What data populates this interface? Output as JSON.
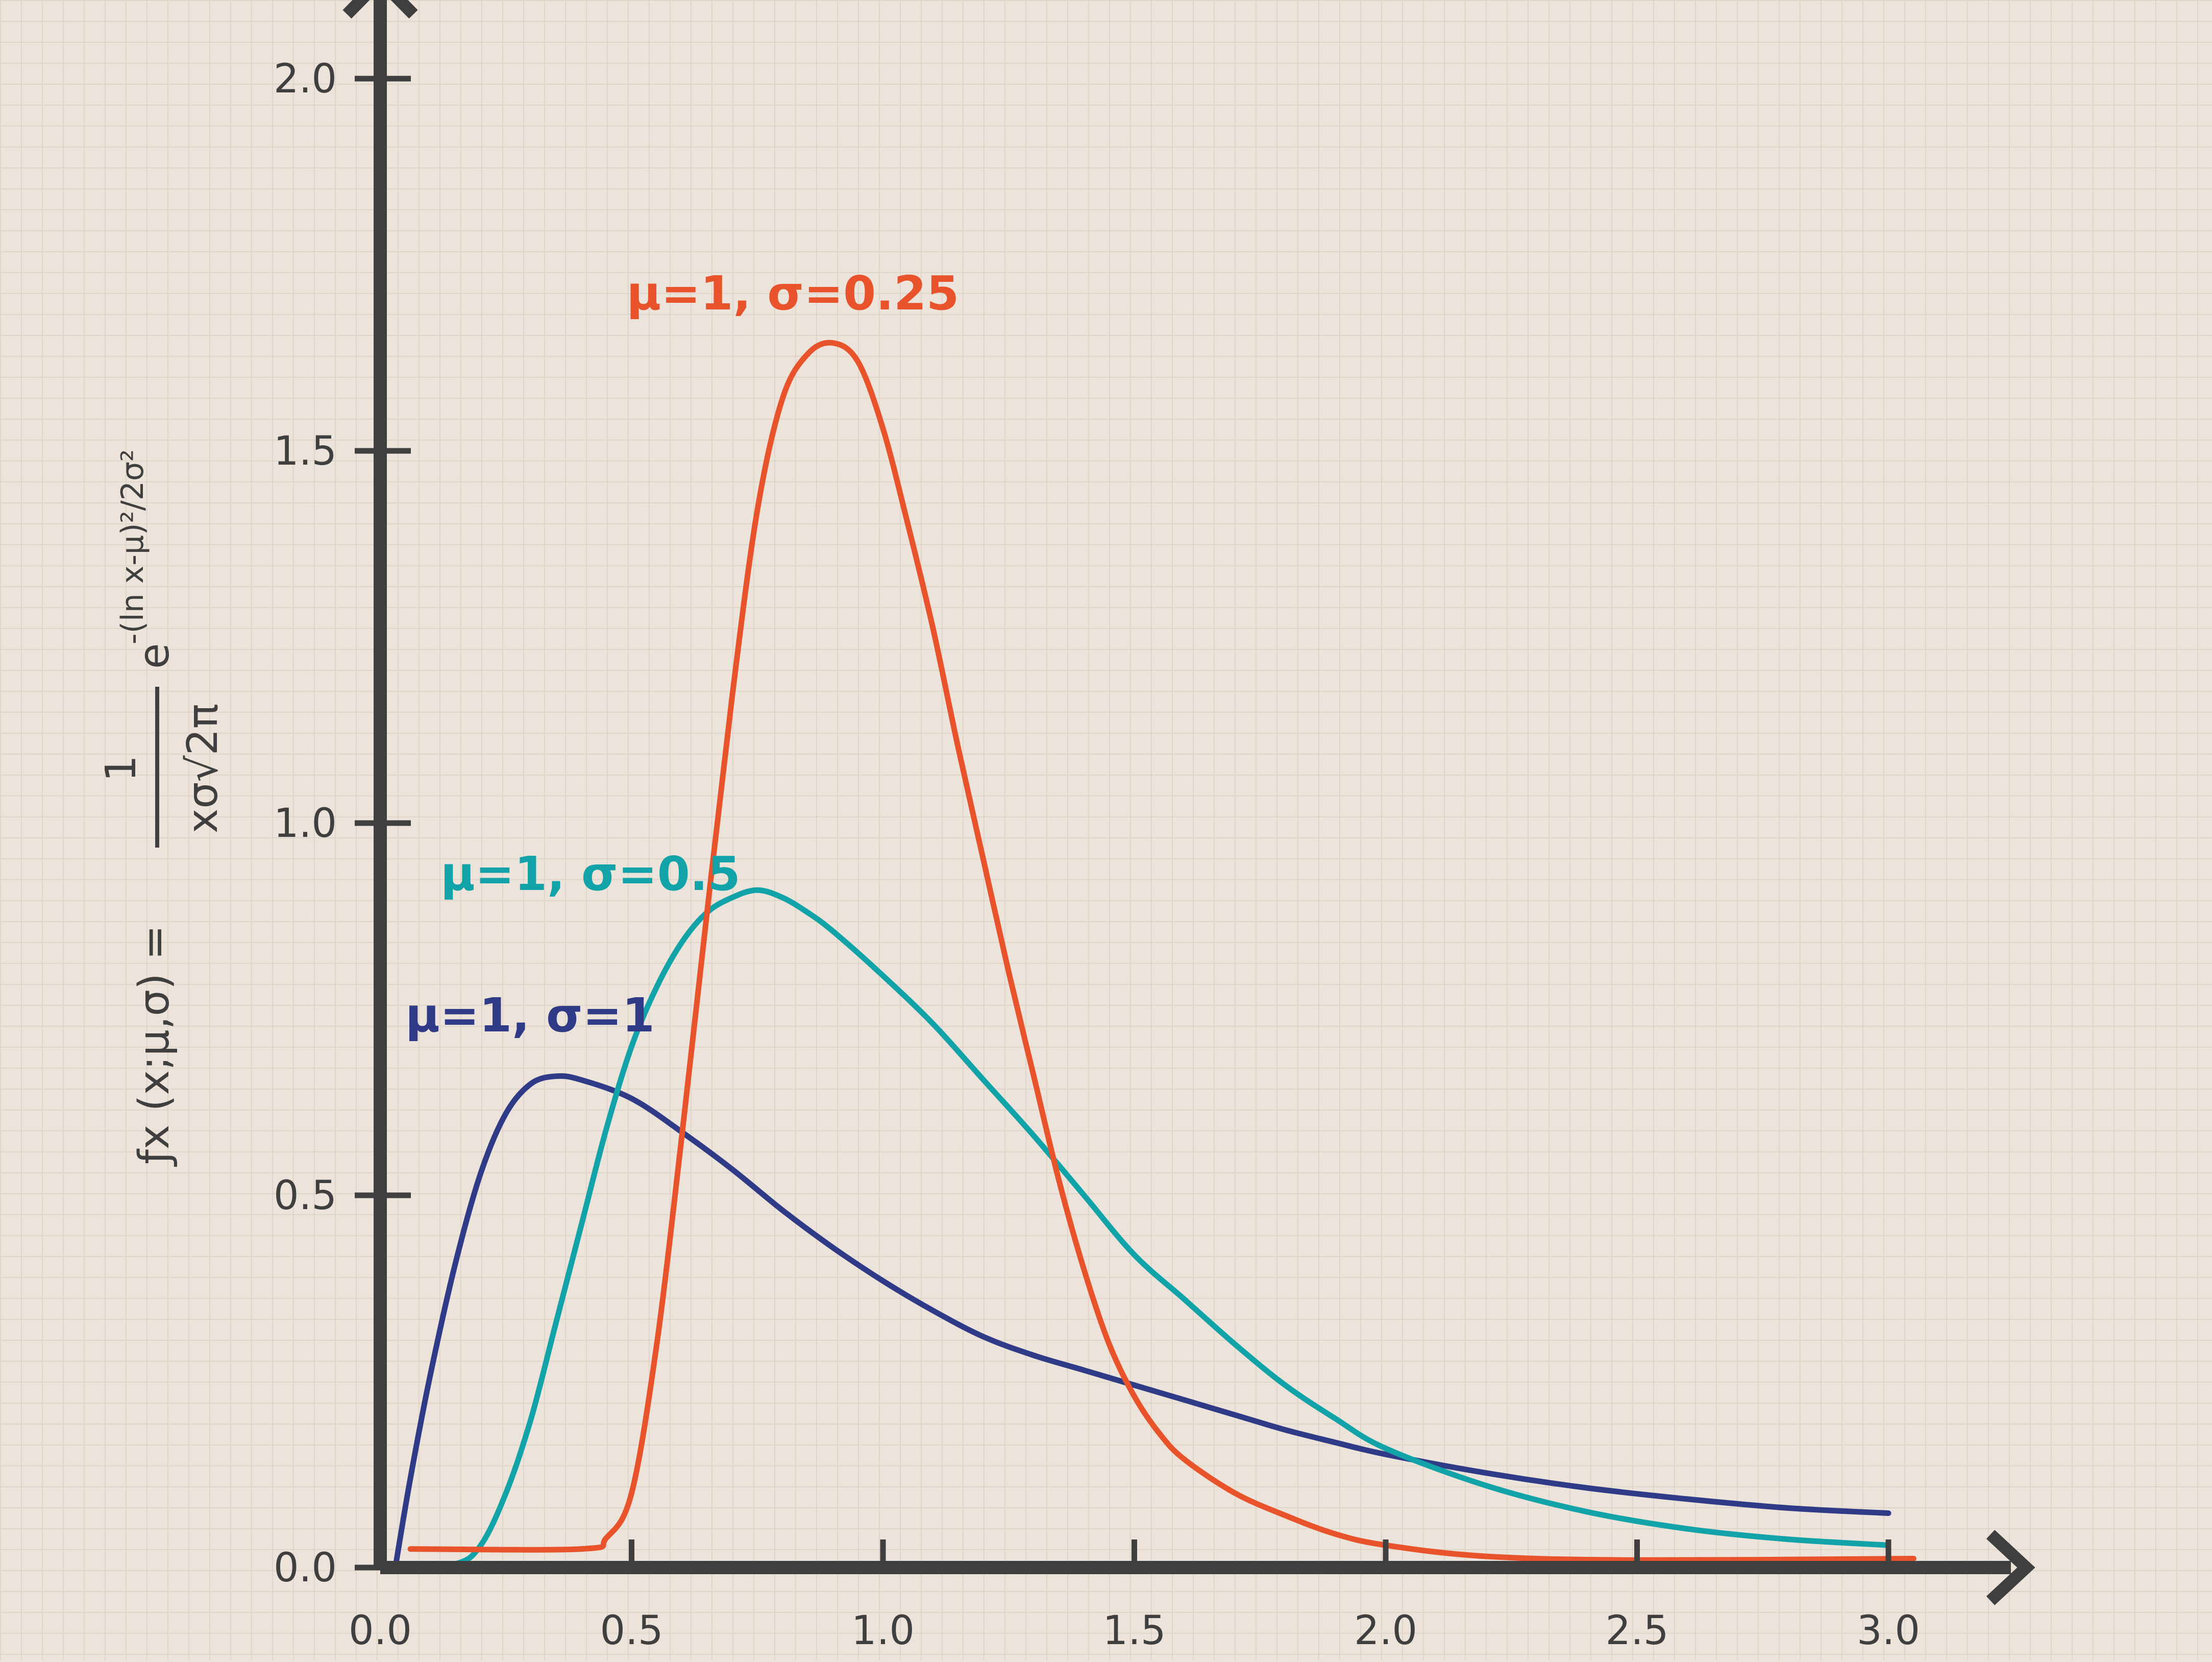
{
  "chart_data": {
    "type": "line",
    "ylabel": {
      "lhs": "ƒx (x;μ,σ) =",
      "numerator": "1",
      "denominator": "xσ√2π",
      "base": "e",
      "exponent": "-(ln x-μ)²/2σ²"
    },
    "xlim": [
      0,
      3.0
    ],
    "ylim": [
      0,
      2.0
    ],
    "x_ticks": [
      "0.0",
      "0.5",
      "1.0",
      "1.5",
      "2.0",
      "2.5",
      "3.0"
    ],
    "y_ticks": [
      "0.0",
      "0.5",
      "1.0",
      "1.5",
      "2.0"
    ],
    "grid": true,
    "series": [
      {
        "name": "μ=1, σ=1",
        "color": "#2f3b86",
        "points": [
          [
            0.03,
            0.0
          ],
          [
            0.06,
            0.12
          ],
          [
            0.1,
            0.26
          ],
          [
            0.15,
            0.41
          ],
          [
            0.2,
            0.53
          ],
          [
            0.25,
            0.61
          ],
          [
            0.3,
            0.65
          ],
          [
            0.35,
            0.66
          ],
          [
            0.4,
            0.655
          ],
          [
            0.5,
            0.63
          ],
          [
            0.6,
            0.585
          ],
          [
            0.7,
            0.535
          ],
          [
            0.8,
            0.48
          ],
          [
            0.9,
            0.43
          ],
          [
            1.0,
            0.385
          ],
          [
            1.1,
            0.345
          ],
          [
            1.2,
            0.31
          ],
          [
            1.3,
            0.285
          ],
          [
            1.4,
            0.265
          ],
          [
            1.5,
            0.245
          ],
          [
            1.6,
            0.225
          ],
          [
            1.7,
            0.205
          ],
          [
            1.8,
            0.185
          ],
          [
            1.9,
            0.168
          ],
          [
            2.0,
            0.152
          ],
          [
            2.2,
            0.127
          ],
          [
            2.4,
            0.107
          ],
          [
            2.6,
            0.092
          ],
          [
            2.8,
            0.08
          ],
          [
            3.0,
            0.073
          ]
        ]
      },
      {
        "name": "μ=1, σ=0.5",
        "color": "#12a3a8",
        "points": [
          [
            0.05,
            0.005
          ],
          [
            0.15,
            0.005
          ],
          [
            0.2,
            0.03
          ],
          [
            0.25,
            0.1
          ],
          [
            0.3,
            0.2
          ],
          [
            0.35,
            0.33
          ],
          [
            0.4,
            0.46
          ],
          [
            0.45,
            0.59
          ],
          [
            0.5,
            0.7
          ],
          [
            0.55,
            0.78
          ],
          [
            0.6,
            0.84
          ],
          [
            0.65,
            0.88
          ],
          [
            0.7,
            0.9
          ],
          [
            0.75,
            0.91
          ],
          [
            0.8,
            0.9
          ],
          [
            0.85,
            0.88
          ],
          [
            0.9,
            0.855
          ],
          [
            1.0,
            0.795
          ],
          [
            1.1,
            0.73
          ],
          [
            1.2,
            0.655
          ],
          [
            1.3,
            0.58
          ],
          [
            1.4,
            0.5
          ],
          [
            1.5,
            0.42
          ],
          [
            1.6,
            0.36
          ],
          [
            1.7,
            0.3
          ],
          [
            1.8,
            0.245
          ],
          [
            1.9,
            0.2
          ],
          [
            2.0,
            0.16
          ],
          [
            2.2,
            0.11
          ],
          [
            2.4,
            0.075
          ],
          [
            2.6,
            0.052
          ],
          [
            2.8,
            0.038
          ],
          [
            3.0,
            0.03
          ]
        ]
      },
      {
        "name": "μ=1, σ=0.25",
        "color": "#e8532b",
        "points": [
          [
            0.06,
            0.025
          ],
          [
            0.4,
            0.025
          ],
          [
            0.45,
            0.04
          ],
          [
            0.5,
            0.1
          ],
          [
            0.55,
            0.3
          ],
          [
            0.6,
            0.58
          ],
          [
            0.65,
            0.88
          ],
          [
            0.7,
            1.17
          ],
          [
            0.75,
            1.42
          ],
          [
            0.8,
            1.57
          ],
          [
            0.85,
            1.63
          ],
          [
            0.9,
            1.645
          ],
          [
            0.95,
            1.62
          ],
          [
            1.0,
            1.53
          ],
          [
            1.05,
            1.4
          ],
          [
            1.1,
            1.26
          ],
          [
            1.15,
            1.1
          ],
          [
            1.2,
            0.95
          ],
          [
            1.25,
            0.8
          ],
          [
            1.3,
            0.66
          ],
          [
            1.35,
            0.52
          ],
          [
            1.4,
            0.4
          ],
          [
            1.45,
            0.3
          ],
          [
            1.5,
            0.23
          ],
          [
            1.55,
            0.18
          ],
          [
            1.6,
            0.145
          ],
          [
            1.7,
            0.1
          ],
          [
            1.8,
            0.07
          ],
          [
            1.9,
            0.045
          ],
          [
            2.0,
            0.03
          ],
          [
            2.2,
            0.015
          ],
          [
            2.5,
            0.01
          ],
          [
            3.05,
            0.012
          ]
        ]
      }
    ]
  }
}
